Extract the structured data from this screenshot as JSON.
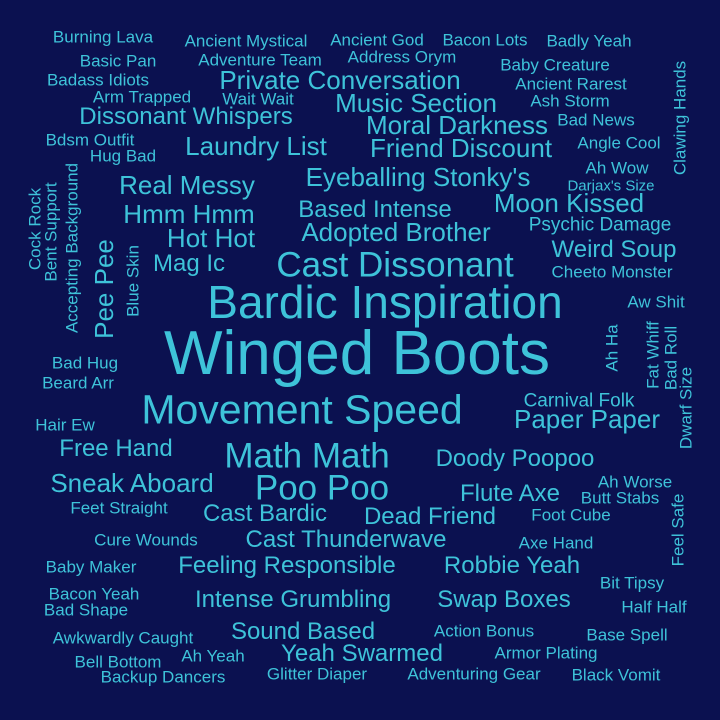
{
  "colors": {
    "background": "#0b1150",
    "text": "#3ec3d9"
  },
  "words": [
    "Winged Boots",
    "Bardic Inspiration",
    "Movement Speed",
    "Cast Dissonant",
    "Math Math",
    "Poo Poo",
    "Private Conversation",
    "Music Section",
    "Moral Darkness",
    "Friend Discount",
    "Dissonant Whispers",
    "Laundry List",
    "Eyeballing Stonky's",
    "Real Messy",
    "Moon Kissed",
    "Hmm Hmm",
    "Based Intense",
    "Adopted Brother",
    "Hot Hot",
    "Weird Soup",
    "Mag Ic",
    "Psychic Damage",
    "Pee Pee",
    "Paper Paper",
    "Free Hand",
    "Doody Poopoo",
    "Sneak Aboard",
    "Flute Axe",
    "Cast Bardic",
    "Dead Friend",
    "Cast Thunderwave",
    "Feeling Responsible",
    "Robbie Yeah",
    "Intense Grumbling",
    "Swap Boxes",
    "Sound Based",
    "Yeah Swarmed",
    "Carnival Folk",
    "Burning Lava",
    "Ancient Mystical",
    "Ancient God",
    "Bacon Lots",
    "Badly Yeah",
    "Address Orym",
    "Basic Pan",
    "Adventure Team",
    "Baby Creature",
    "Badass Idiots",
    "Ancient Rarest",
    "Arm Trapped",
    "Wait Wait",
    "Ash Storm",
    "Bad News",
    "Bdsm Outfit",
    "Angle Cool",
    "Hug Bad",
    "Ah Wow",
    "Darjax's Size",
    "Clawing Hands",
    "Cock Rock",
    "Bent Support",
    "Accepting Background",
    "Blue Skin",
    "Cheeto Monster",
    "Aw Shit",
    "Ah Ha",
    "Fat Whiff",
    "Bad Roll",
    "Dwarf Size",
    "Bad Hug",
    "Beard Arr",
    "Hair Ew",
    "Ah Worse",
    "Butt Stabs",
    "Feel Safe",
    "Feet Straight",
    "Foot Cube",
    "Cure Wounds",
    "Axe Hand",
    "Baby Maker",
    "Bit Tipsy",
    "Bacon Yeah",
    "Bad Shape",
    "Half Half",
    "Awkwardly Caught",
    "Action Bonus",
    "Base Spell",
    "Bell Bottom",
    "Ah Yeah",
    "Armor Plating",
    "Backup Dancers",
    "Glitter Diaper",
    "Adventuring Gear",
    "Black Vomit"
  ]
}
